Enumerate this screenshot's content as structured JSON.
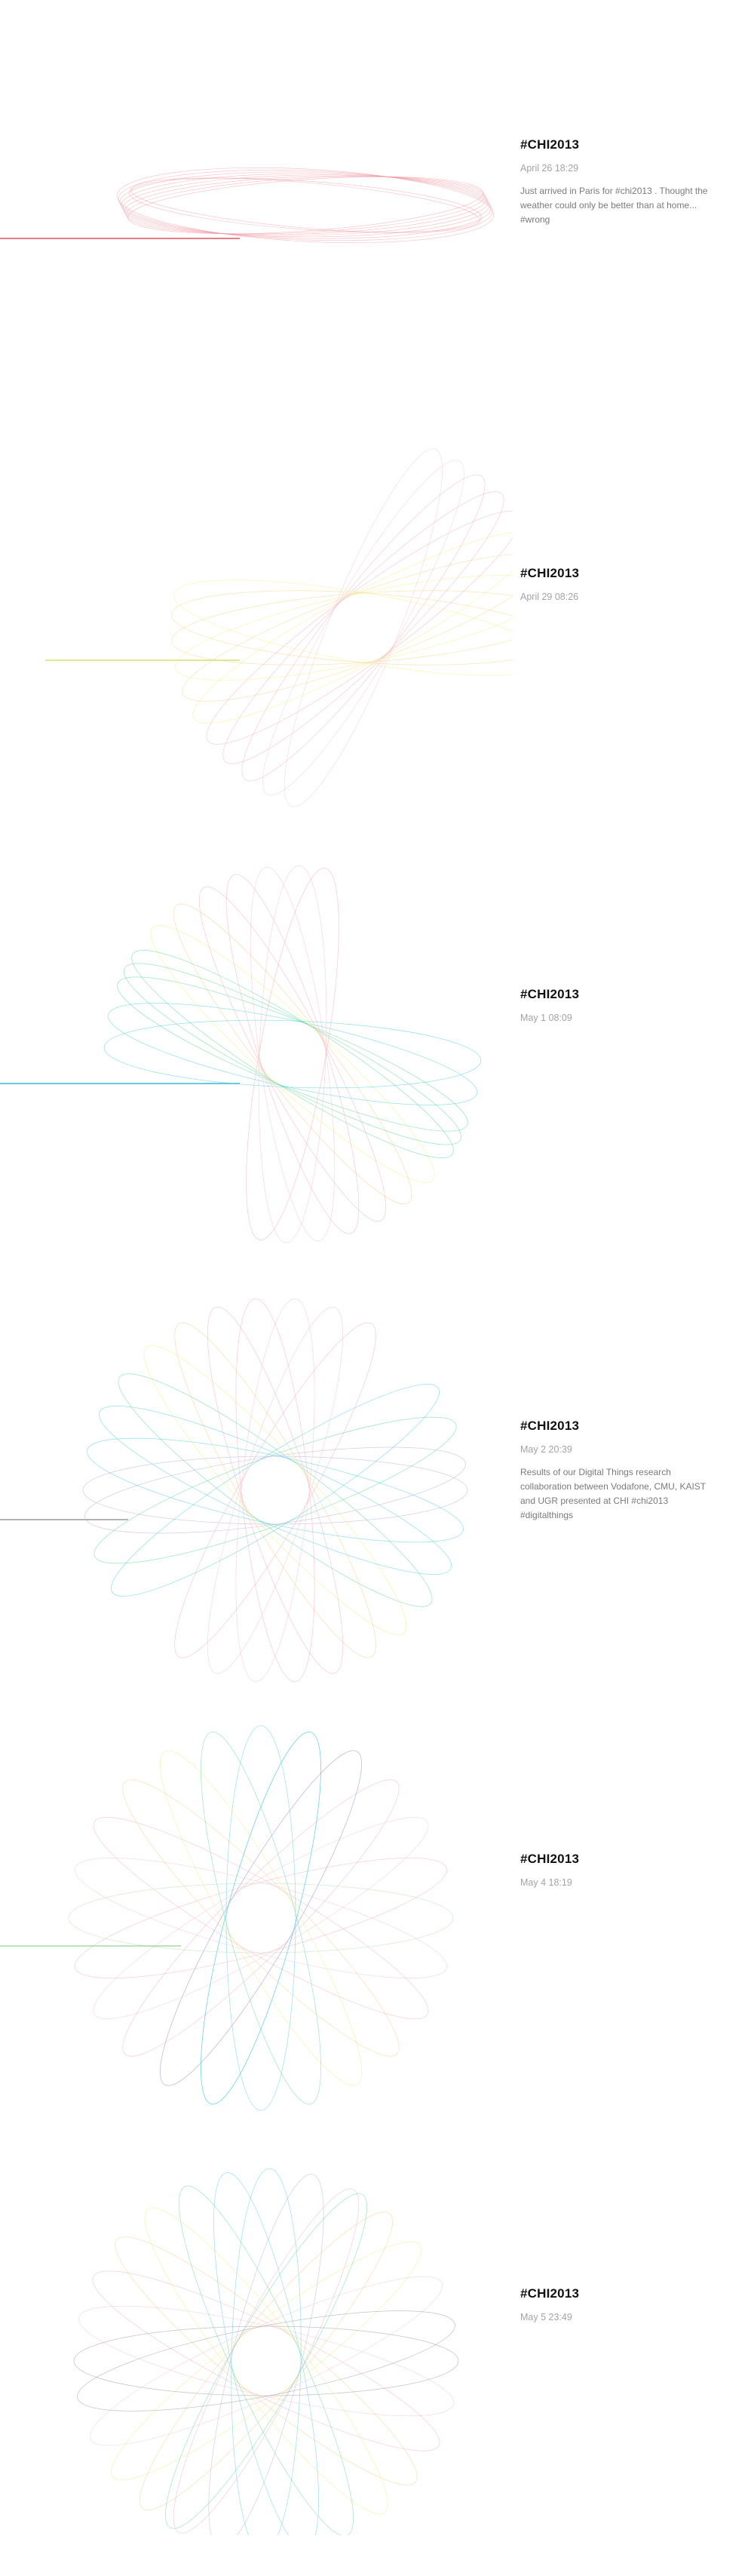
{
  "entries": [
    {
      "hashtag": "#CHI2013",
      "date": "April 26 18:29",
      "text": "Just arrived in Paris for #chi2013 . Thought the\nweather could only be better than at home...\n#wrong",
      "palette": [
        "#f5a3ad",
        "#ef8896",
        "#f7b6c0"
      ]
    },
    {
      "hashtag": "#CHI2013",
      "date": "April 29 08:26",
      "text": "",
      "palette": [
        "#f2a4b3",
        "#f5d27a",
        "#f2ee74",
        "#f4c0cc"
      ]
    },
    {
      "hashtag": "#CHI2013",
      "date": "May 1 08:09",
      "text": "",
      "palette": [
        "#f2a4b3",
        "#f4c57a",
        "#eeee70",
        "#4cd38e",
        "#41c9d8",
        "#f4b9c5"
      ]
    },
    {
      "hashtag": "#CHI2013",
      "date": "May 2 20:39",
      "text": "Results of our Digital Things research\ncollaboration between Vodafone, CMU, KAIST\nand UGR presented at CHI #chi2013\n#digitalthings",
      "palette": [
        "#f2a4b3",
        "#f4c57a",
        "#e9ec6d",
        "#4cd38e",
        "#44c6e0",
        "#b6a2da",
        "#f4b9c5"
      ]
    },
    {
      "hashtag": "#CHI2013",
      "date": "May 4 18:19",
      "text": "",
      "palette": [
        "#f2a4b3",
        "#f4c57a",
        "#e9ec6d",
        "#4cd38e",
        "#44c6e0",
        "#b6a2da",
        "#a8d9a6",
        "#f4b9c5"
      ]
    },
    {
      "hashtag": "#CHI2013",
      "date": "May 5 23:49",
      "text": "",
      "palette": [
        "#f2a4b3",
        "#f4c57a",
        "#e9ec6d",
        "#4cd38e",
        "#44c6e0",
        "#b6a2da",
        "#8a8a8a",
        "#f4b9c5"
      ]
    }
  ]
}
